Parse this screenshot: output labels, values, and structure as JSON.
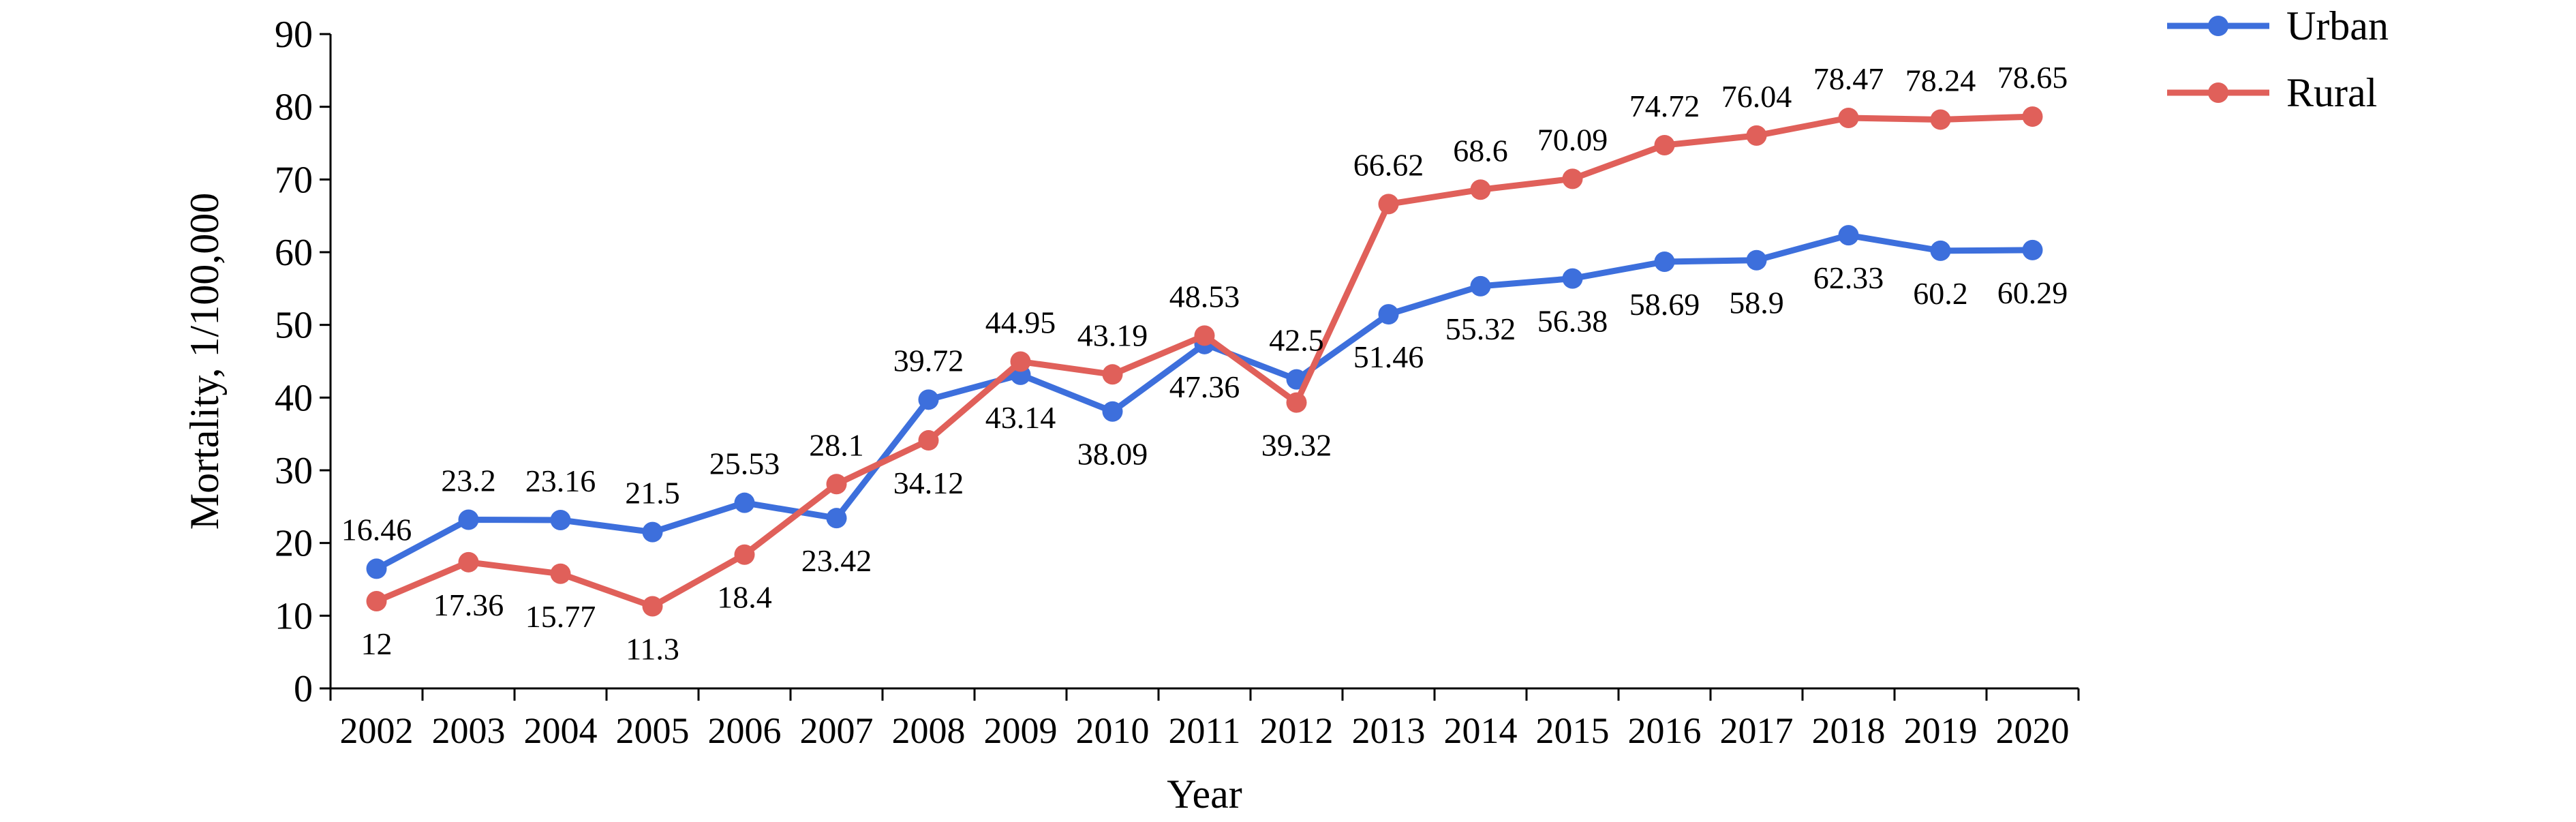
{
  "chart_data": {
    "type": "line",
    "title": "",
    "xlabel": "Year",
    "ylabel": "Mortality, 1/100,000",
    "ylim": [
      0,
      90
    ],
    "yticks": [
      0,
      10,
      20,
      30,
      40,
      50,
      60,
      70,
      80,
      90
    ],
    "grid": false,
    "legend_position": "top-right",
    "categories": [
      "2002",
      "2003",
      "2004",
      "2005",
      "2006",
      "2007",
      "2008",
      "2009",
      "2010",
      "2011",
      "2012",
      "2013",
      "2014",
      "2015",
      "2016",
      "2017",
      "2018",
      "2019",
      "2020"
    ],
    "series": [
      {
        "name": "Urban",
        "color": "#3d6fdc",
        "values": [
          16.46,
          23.2,
          23.16,
          21.5,
          25.53,
          23.42,
          39.72,
          43.14,
          38.09,
          47.36,
          42.5,
          51.46,
          55.32,
          56.38,
          58.69,
          58.9,
          62.33,
          60.2,
          60.29
        ],
        "labels": [
          "16.46",
          "23.2",
          "23.16",
          "21.5",
          "25.53",
          "23.42",
          "39.72",
          "43.14",
          "38.09",
          "47.36",
          "42.5",
          "51.46",
          "55.32",
          "56.38",
          "58.69",
          "58.9",
          "62.33",
          "60.2",
          "60.29"
        ]
      },
      {
        "name": "Rural",
        "color": "#e0605a",
        "values": [
          12,
          17.36,
          15.77,
          11.3,
          18.4,
          28.1,
          34.12,
          44.95,
          43.19,
          48.53,
          39.32,
          66.62,
          68.6,
          70.09,
          74.72,
          76.04,
          78.47,
          78.24,
          78.65
        ],
        "labels": [
          "12",
          "17.36",
          "15.77",
          "11.3",
          "18.4",
          "28.1",
          "34.12",
          "44.95",
          "43.19",
          "48.53",
          "39.32",
          "66.62",
          "68.6",
          "70.09",
          "74.72",
          "76.04",
          "78.47",
          "78.24",
          "78.65"
        ]
      }
    ]
  }
}
